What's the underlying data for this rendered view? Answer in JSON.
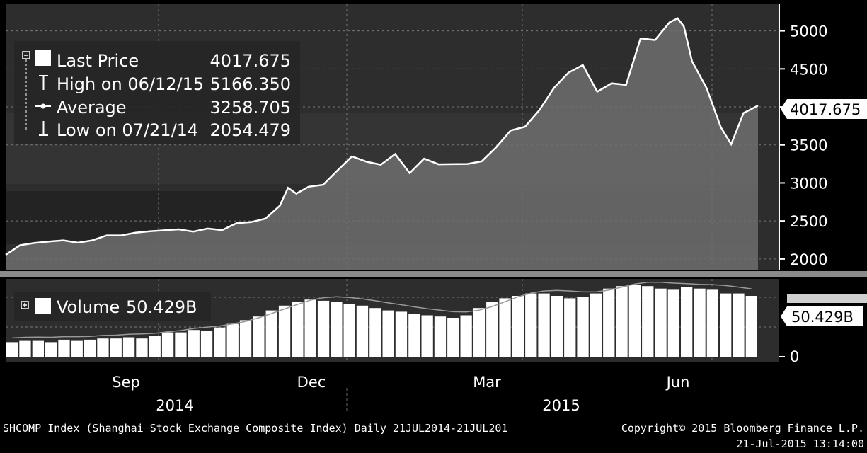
{
  "colors": {
    "background": "#000000",
    "panel": "#2d2d2d",
    "band": "#3a3a3a",
    "line": "#ffffff",
    "area": "#6e6e6e",
    "divider": "#8a8a8a",
    "bars": "#ffffff",
    "avg_line": "#9a9a9a"
  },
  "price_legend": {
    "last_label": "Last Price",
    "last_value": "4017.675",
    "high_label": "High on 06/12/15",
    "high_value": "5166.350",
    "avg_label": "Average",
    "avg_value": "3258.705",
    "low_label": "Low on 07/21/14",
    "low_value": "2054.479"
  },
  "price_tag": "4017.675",
  "volume_legend": {
    "label": "Volume",
    "value": "50.429B"
  },
  "volume_tag": "50.429B",
  "x_axis": {
    "months": [
      "Sep",
      "Dec",
      "Mar",
      "Jun"
    ],
    "years": [
      "2014",
      "2015"
    ]
  },
  "footer": {
    "left": "SHCOMP Index (Shanghai Stock Exchange Composite Index)  Daily 21JUL2014-21JUL201",
    "right": "Copyright© 2015 Bloomberg Finance L.P.",
    "timestamp": "21-Jul-2015 13:14:00"
  },
  "chart_data": [
    {
      "type": "area",
      "title": "SHCOMP Index (Shanghai Stock Exchange Composite Index)",
      "x_range": [
        "2014-07-21",
        "2015-07-21"
      ],
      "ylim": [
        1850,
        5350
      ],
      "y_ticks": [
        2000,
        2500,
        3000,
        3500,
        4000,
        4500,
        5000
      ],
      "y_tick_labels": [
        "2000",
        "2500",
        "3000",
        "3500",
        "",
        "4500",
        "5000"
      ],
      "grid": true,
      "legend_position": "top-left",
      "series": [
        {
          "name": "Last Price",
          "points": [
            [
              "2014-07-21",
              2054
            ],
            [
              "2014-07-28",
              2180
            ],
            [
              "2014-08-04",
              2210
            ],
            [
              "2014-08-11",
              2230
            ],
            [
              "2014-08-18",
              2245
            ],
            [
              "2014-08-25",
              2215
            ],
            [
              "2014-09-01",
              2245
            ],
            [
              "2014-09-08",
              2310
            ],
            [
              "2014-09-15",
              2310
            ],
            [
              "2014-09-22",
              2345
            ],
            [
              "2014-09-29",
              2365
            ],
            [
              "2014-10-13",
              2390
            ],
            [
              "2014-10-20",
              2360
            ],
            [
              "2014-10-27",
              2400
            ],
            [
              "2014-11-03",
              2380
            ],
            [
              "2014-11-10",
              2470
            ],
            [
              "2014-11-17",
              2485
            ],
            [
              "2014-11-24",
              2530
            ],
            [
              "2014-12-01",
              2700
            ],
            [
              "2014-12-05",
              2935
            ],
            [
              "2014-12-09",
              2860
            ],
            [
              "2014-12-15",
              2950
            ],
            [
              "2014-12-22",
              2975
            ],
            [
              "2014-12-29",
              3165
            ],
            [
              "2015-01-05",
              3350
            ],
            [
              "2015-01-12",
              3280
            ],
            [
              "2015-01-19",
              3240
            ],
            [
              "2015-01-26",
              3380
            ],
            [
              "2015-02-02",
              3130
            ],
            [
              "2015-02-09",
              3320
            ],
            [
              "2015-02-16",
              3245
            ],
            [
              "2015-03-02",
              3250
            ],
            [
              "2015-03-09",
              3285
            ],
            [
              "2015-03-16",
              3470
            ],
            [
              "2015-03-23",
              3690
            ],
            [
              "2015-03-30",
              3740
            ],
            [
              "2015-04-06",
              3960
            ],
            [
              "2015-04-13",
              4250
            ],
            [
              "2015-04-20",
              4450
            ],
            [
              "2015-04-27",
              4550
            ],
            [
              "2015-05-04",
              4200
            ],
            [
              "2015-05-11",
              4310
            ],
            [
              "2015-05-18",
              4290
            ],
            [
              "2015-05-25",
              4900
            ],
            [
              "2015-06-01",
              4880
            ],
            [
              "2015-06-08",
              5110
            ],
            [
              "2015-06-12",
              5166
            ],
            [
              "2015-06-15",
              5060
            ],
            [
              "2015-06-19",
              4600
            ],
            [
              "2015-06-26",
              4250
            ],
            [
              "2015-07-03",
              3730
            ],
            [
              "2015-07-08",
              3510
            ],
            [
              "2015-07-14",
              3920
            ],
            [
              "2015-07-17",
              3960
            ],
            [
              "2015-07-21",
              4018
            ]
          ]
        }
      ]
    },
    {
      "type": "bar",
      "title": "Volume",
      "x_range": [
        "2014-07-21",
        "2015-07-21"
      ],
      "y_ticks": [
        0
      ],
      "y_tick_labels": [
        "0"
      ],
      "legend_position": "top-left",
      "series": [
        {
          "name": "Volume",
          "unit": "B",
          "values": [
            12,
            13,
            13,
            12,
            14,
            13,
            14,
            15,
            15,
            16,
            15,
            17,
            20,
            20,
            22,
            21,
            24,
            27,
            30,
            33,
            38,
            42,
            45,
            47,
            46,
            45,
            43,
            42,
            40,
            38,
            37,
            35,
            34,
            33,
            32,
            34,
            40,
            45,
            48,
            50,
            52,
            52,
            50,
            48,
            49,
            52,
            56,
            58,
            59,
            58,
            56,
            55,
            57,
            56,
            55,
            52,
            52,
            50
          ]
        }
      ]
    }
  ]
}
